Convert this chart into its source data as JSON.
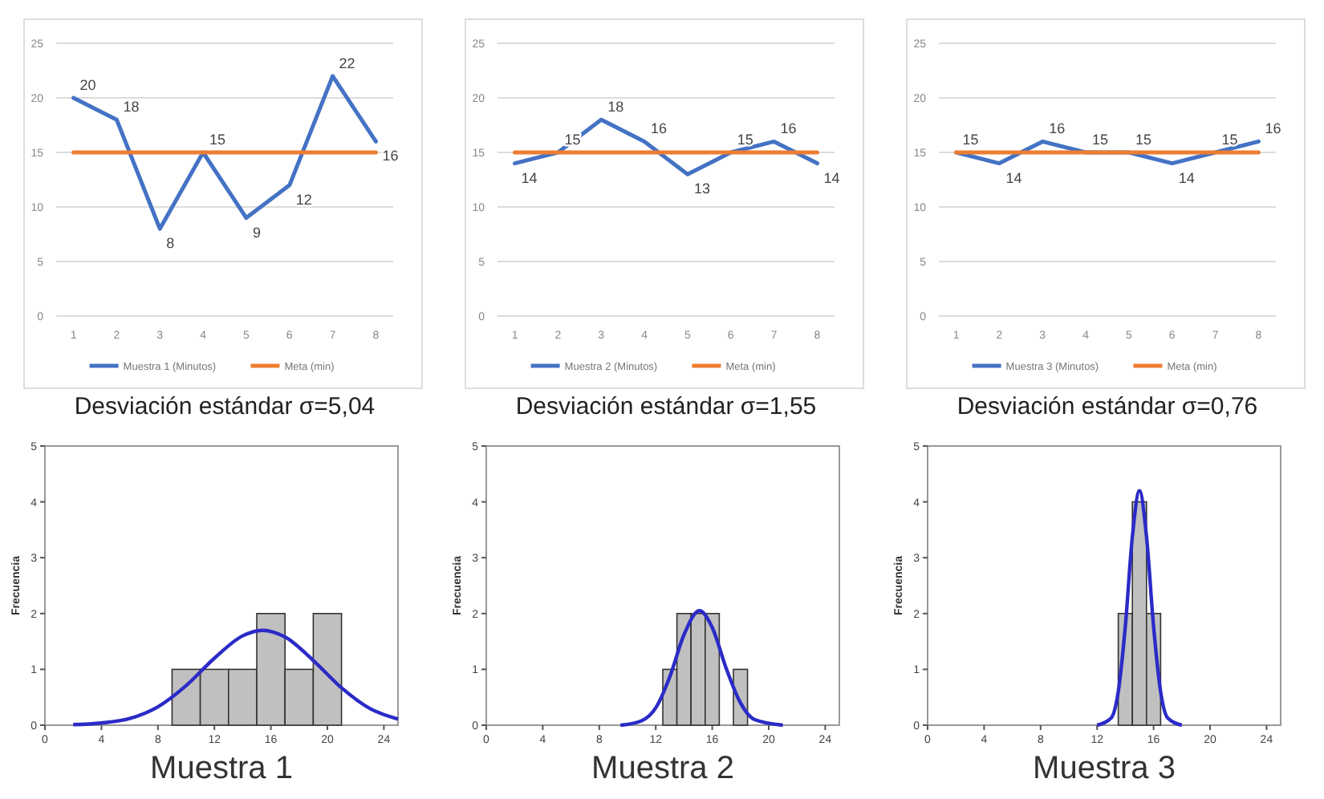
{
  "chart_data": [
    {
      "type": "line",
      "title": "Desviación estándar σ=5,04",
      "categories": [
        "1",
        "2",
        "3",
        "4",
        "5",
        "6",
        "7",
        "8"
      ],
      "ylim": [
        0,
        25
      ],
      "yticks": [
        0,
        5,
        10,
        15,
        20,
        25
      ],
      "grid": "y",
      "legend": "bottom",
      "series": [
        {
          "name": "Muestra 1 (Minutos)",
          "color": "#4472c4",
          "values": [
            20,
            18,
            8,
            15,
            9,
            12,
            22,
            16
          ],
          "value_labels": [
            "20",
            "18",
            "8",
            "15",
            "9",
            "12",
            "22",
            "16"
          ]
        },
        {
          "name": "Meta (min)",
          "color": "#ed7d31",
          "values": [
            15,
            15,
            15,
            15,
            15,
            15,
            15,
            15
          ]
        }
      ]
    },
    {
      "type": "line",
      "title": "Desviación estándar σ=1,55",
      "categories": [
        "1",
        "2",
        "3",
        "4",
        "5",
        "6",
        "7",
        "8"
      ],
      "ylim": [
        0,
        25
      ],
      "yticks": [
        0,
        5,
        10,
        15,
        20,
        25
      ],
      "grid": "y",
      "legend": "bottom",
      "series": [
        {
          "name": "Muestra 2 (Minutos)",
          "color": "#4472c4",
          "values": [
            14,
            15,
            18,
            16,
            13,
            15,
            16,
            14
          ],
          "value_labels": [
            "14",
            "15",
            "18",
            "16",
            "13",
            "15",
            "16",
            "14"
          ]
        },
        {
          "name": "Meta (min)",
          "color": "#ed7d31",
          "values": [
            15,
            15,
            15,
            15,
            15,
            15,
            15,
            15
          ]
        }
      ]
    },
    {
      "type": "line",
      "title": "Desviación estándar σ=0,76",
      "categories": [
        "1",
        "2",
        "3",
        "4",
        "5",
        "6",
        "7",
        "8"
      ],
      "ylim": [
        0,
        25
      ],
      "yticks": [
        0,
        5,
        10,
        15,
        20,
        25
      ],
      "grid": "y",
      "legend": "bottom",
      "series": [
        {
          "name": "Muestra 3 (Minutos)",
          "color": "#4472c4",
          "values": [
            15,
            14,
            16,
            15,
            15,
            14,
            15,
            16
          ],
          "value_labels": [
            "15",
            "14",
            "16",
            "15",
            "15",
            "14",
            "15",
            "16"
          ]
        },
        {
          "name": "Meta (min)",
          "color": "#ed7d31",
          "values": [
            15,
            15,
            15,
            15,
            15,
            15,
            15,
            15
          ]
        }
      ]
    },
    {
      "type": "histogram",
      "xlabel": "Muestra 1",
      "ylabel": "Frecuencia",
      "xlim": [
        0,
        25
      ],
      "xticks": [
        0,
        4,
        8,
        12,
        16,
        20,
        24
      ],
      "ylim": [
        0,
        5
      ],
      "yticks": [
        0,
        1,
        2,
        3,
        4,
        5
      ],
      "bins": [
        9,
        11,
        13,
        15,
        17,
        19,
        21
      ],
      "series": [
        {
          "type": "histogram",
          "color": "#c0c0c0",
          "values": [
            1,
            1,
            1,
            2,
            1,
            2
          ]
        },
        {
          "type": "line",
          "color": "#2b2bc8",
          "x": [
            2,
            4,
            6,
            8,
            10,
            12,
            14,
            15.4,
            17,
            19,
            21,
            23,
            25
          ],
          "values": [
            0.01,
            0.04,
            0.12,
            0.33,
            0.71,
            1.2,
            1.6,
            1.7,
            1.58,
            1.16,
            0.67,
            0.3,
            0.11
          ]
        }
      ]
    },
    {
      "type": "histogram",
      "xlabel": "Muestra 2",
      "ylabel": "Frecuencia",
      "xlim": [
        0,
        25
      ],
      "xticks": [
        0,
        4,
        8,
        12,
        16,
        20,
        24
      ],
      "ylim": [
        0,
        5
      ],
      "yticks": [
        0,
        1,
        2,
        3,
        4,
        5
      ],
      "bins": [
        12.5,
        13.5,
        14.5,
        15.5,
        16.5,
        17.5,
        18.5
      ],
      "series": [
        {
          "type": "histogram",
          "color": "#c0c0c0",
          "values": [
            1,
            2,
            2,
            2,
            0,
            1
          ]
        },
        {
          "type": "line",
          "color": "#2b2bc8",
          "x": [
            9.5,
            11,
            12,
            13,
            14,
            15.1,
            16,
            17,
            18,
            19,
            21
          ],
          "values": [
            0,
            0.08,
            0.31,
            0.87,
            1.62,
            2.05,
            1.75,
            1.01,
            0.4,
            0.1,
            0
          ]
        }
      ]
    },
    {
      "type": "histogram",
      "xlabel": "Muestra 3",
      "ylabel": "Frecuencia",
      "xlim": [
        0,
        25
      ],
      "xticks": [
        0,
        4,
        8,
        12,
        16,
        20,
        24
      ],
      "ylim": [
        0,
        5
      ],
      "yticks": [
        0,
        1,
        2,
        3,
        4,
        5
      ],
      "bins": [
        13.5,
        14.5,
        15.5,
        16.5
      ],
      "series": [
        {
          "type": "histogram",
          "color": "#c0c0c0",
          "values": [
            2,
            4,
            2
          ]
        },
        {
          "type": "line",
          "color": "#2b2bc8",
          "x": [
            12,
            13,
            13.5,
            14,
            14.5,
            15,
            15.5,
            16,
            16.5,
            17,
            18
          ],
          "values": [
            0,
            0.13,
            0.6,
            1.77,
            3.38,
            4.2,
            3.38,
            1.77,
            0.6,
            0.13,
            0
          ]
        }
      ]
    }
  ]
}
